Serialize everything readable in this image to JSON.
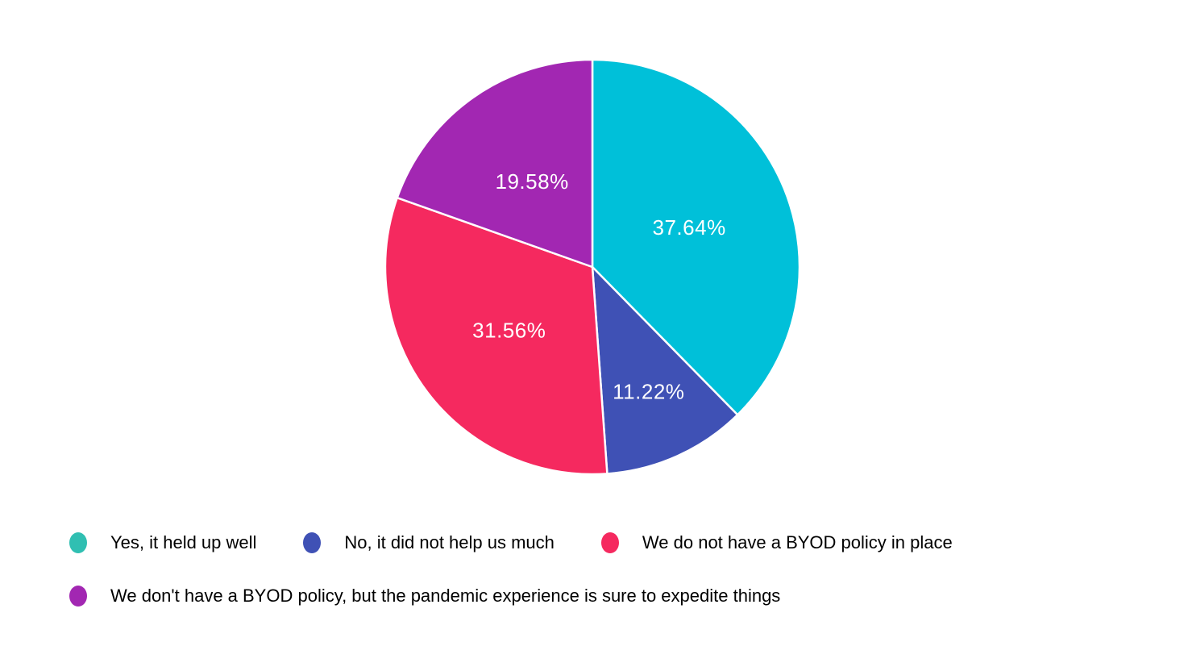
{
  "page": {
    "background": "#ffffff"
  },
  "chart_data": {
    "type": "pie",
    "title": "",
    "start_angle_deg": 0,
    "direction": "clockwise",
    "percent_label_color": "#ffffff",
    "legend_text_color": "#000000",
    "legend_position": "bottom",
    "slices": [
      {
        "label": "Yes, it held up well",
        "value": 37.64,
        "display_value": "37.64%",
        "slice_color": "#00c0d9",
        "legend_marker_color": "#30bfb2"
      },
      {
        "label": "No, it did not help us much",
        "value": 11.22,
        "display_value": "11.22%",
        "slice_color": "#3f51b5",
        "legend_marker_color": "#3f51b5"
      },
      {
        "label": "We do not have a BYOD policy in place",
        "value": 31.56,
        "display_value": "31.56%",
        "slice_color": "#f5295f",
        "legend_marker_color": "#f5295f"
      },
      {
        "label": "We don't have a BYOD policy, but the pandemic experience is sure to expedite things",
        "value": 19.58,
        "display_value": "19.58%",
        "slice_color": "#a227b2",
        "legend_marker_color": "#a227b2"
      }
    ]
  }
}
